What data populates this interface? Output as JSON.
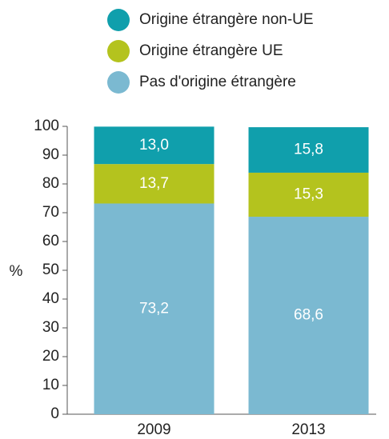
{
  "chart_data": {
    "type": "stacked_bar",
    "ylabel": "%",
    "categories": [
      "2009",
      "2013"
    ],
    "series": [
      {
        "name": "Pas d'origine étrangère",
        "color": "#7bb9d1",
        "values": [
          73.2,
          68.6
        ],
        "value_labels": [
          "73,2",
          "68,6"
        ]
      },
      {
        "name": "Origine étrangère UE",
        "color": "#b4c31e",
        "values": [
          13.7,
          15.3
        ],
        "value_labels": [
          "13,7",
          "15,3"
        ]
      },
      {
        "name": "Origine étrangère non-UE",
        "color": "#109fac",
        "values": [
          13.0,
          15.8
        ],
        "value_labels": [
          "13,0",
          "15,8"
        ]
      }
    ],
    "ylim": [
      0,
      100
    ],
    "yticks": [
      0,
      10,
      20,
      30,
      40,
      50,
      60,
      70,
      80,
      90,
      100
    ]
  }
}
